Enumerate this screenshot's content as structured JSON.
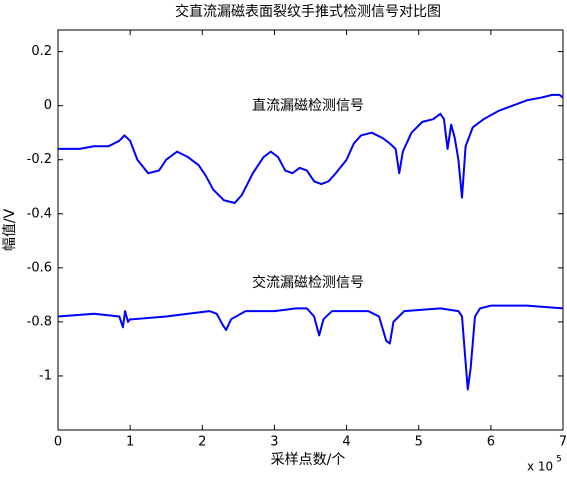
{
  "chart_data": {
    "type": "line",
    "title": "交直流漏磁表面裂纹手推式检测信号对比图",
    "x_label": "采样点数/个",
    "x_multiplier": "x 10",
    "x_multiplier_exponent": "5",
    "y_label": "幅值/V",
    "annotations": [
      "直流漏磁检测信号",
      "交流漏磁检测信号"
    ],
    "xlim": [
      0,
      7
    ],
    "xticks": [
      0,
      1,
      2,
      3,
      4,
      5,
      6,
      7
    ],
    "ylim": [
      -1.2,
      0.28
    ],
    "yticks": [
      -1,
      -0.8,
      -0.6,
      -0.4,
      -0.2,
      0,
      0.2
    ],
    "grid": false,
    "series": [
      {
        "color": "#0000ff",
        "x": [
          0,
          0.3,
          0.5,
          0.7,
          0.85,
          0.92,
          1.0,
          1.1,
          1.25,
          1.4,
          1.5,
          1.65,
          1.8,
          1.95,
          2.05,
          2.15,
          2.3,
          2.45,
          2.55,
          2.7,
          2.85,
          2.95,
          3.05,
          3.15,
          3.25,
          3.35,
          3.45,
          3.55,
          3.65,
          3.75,
          3.85,
          4.0,
          4.1,
          4.2,
          4.35,
          4.5,
          4.6,
          4.68,
          4.73,
          4.78,
          4.9,
          5.05,
          5.2,
          5.3,
          5.35,
          5.4,
          5.45,
          5.5,
          5.55,
          5.6,
          5.65,
          5.75,
          5.9,
          6.1,
          6.3,
          6.5,
          6.7,
          6.85,
          6.95,
          7.0
        ],
        "values": [
          -0.16,
          -0.16,
          -0.15,
          -0.15,
          -0.13,
          -0.11,
          -0.13,
          -0.2,
          -0.25,
          -0.24,
          -0.2,
          -0.17,
          -0.19,
          -0.22,
          -0.26,
          -0.31,
          -0.35,
          -0.36,
          -0.33,
          -0.25,
          -0.19,
          -0.17,
          -0.19,
          -0.24,
          -0.25,
          -0.23,
          -0.24,
          -0.28,
          -0.29,
          -0.28,
          -0.25,
          -0.2,
          -0.14,
          -0.11,
          -0.1,
          -0.12,
          -0.14,
          -0.16,
          -0.25,
          -0.17,
          -0.1,
          -0.06,
          -0.05,
          -0.03,
          -0.05,
          -0.16,
          -0.07,
          -0.12,
          -0.2,
          -0.34,
          -0.15,
          -0.08,
          -0.05,
          -0.02,
          0.0,
          0.02,
          0.03,
          0.04,
          0.04,
          0.03
        ]
      },
      {
        "color": "#0000ff",
        "x": [
          0,
          0.5,
          0.85,
          0.9,
          0.93,
          0.97,
          1.0,
          1.05,
          1.5,
          1.8,
          2.1,
          2.2,
          2.28,
          2.33,
          2.4,
          2.6,
          3.0,
          3.3,
          3.45,
          3.55,
          3.62,
          3.68,
          3.8,
          4.3,
          4.45,
          4.55,
          4.6,
          4.65,
          4.8,
          5.3,
          5.55,
          5.6,
          5.65,
          5.68,
          5.72,
          5.78,
          5.85,
          6.0,
          6.5,
          7.0
        ],
        "values": [
          -0.78,
          -0.77,
          -0.78,
          -0.82,
          -0.76,
          -0.8,
          -0.79,
          -0.79,
          -0.78,
          -0.77,
          -0.76,
          -0.77,
          -0.81,
          -0.83,
          -0.79,
          -0.76,
          -0.76,
          -0.75,
          -0.75,
          -0.78,
          -0.85,
          -0.79,
          -0.76,
          -0.76,
          -0.78,
          -0.87,
          -0.88,
          -0.8,
          -0.76,
          -0.75,
          -0.76,
          -0.78,
          -0.95,
          -1.05,
          -0.97,
          -0.78,
          -0.75,
          -0.74,
          -0.74,
          -0.75
        ]
      }
    ]
  }
}
